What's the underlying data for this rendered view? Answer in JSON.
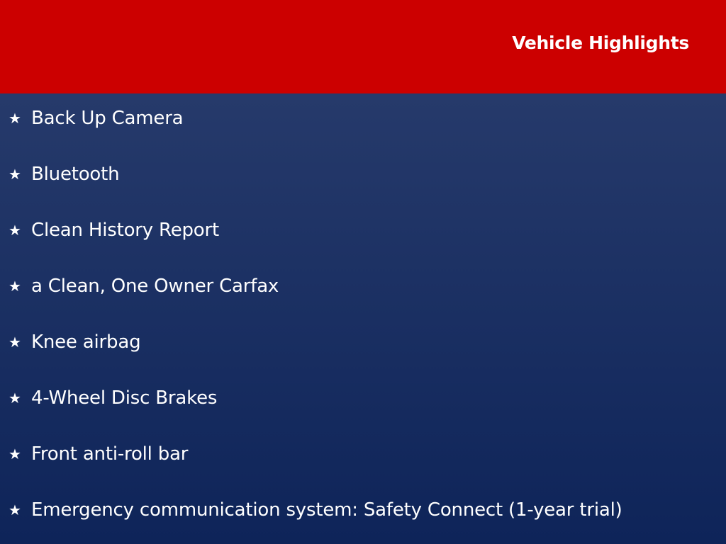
{
  "header": {
    "title": "Vehicle Highlights",
    "color": "#cc0000"
  },
  "highlights": {
    "bullet_icon": "star-icon",
    "background_colors": [
      "#263a6b",
      "#0e2459"
    ],
    "items": [
      "Back Up Camera",
      "Bluetooth",
      "Clean History Report",
      "a Clean, One Owner Carfax",
      "Knee airbag",
      "4-Wheel Disc Brakes",
      "Front anti-roll bar",
      "Emergency communication system: Safety Connect (1-year trial)"
    ]
  }
}
